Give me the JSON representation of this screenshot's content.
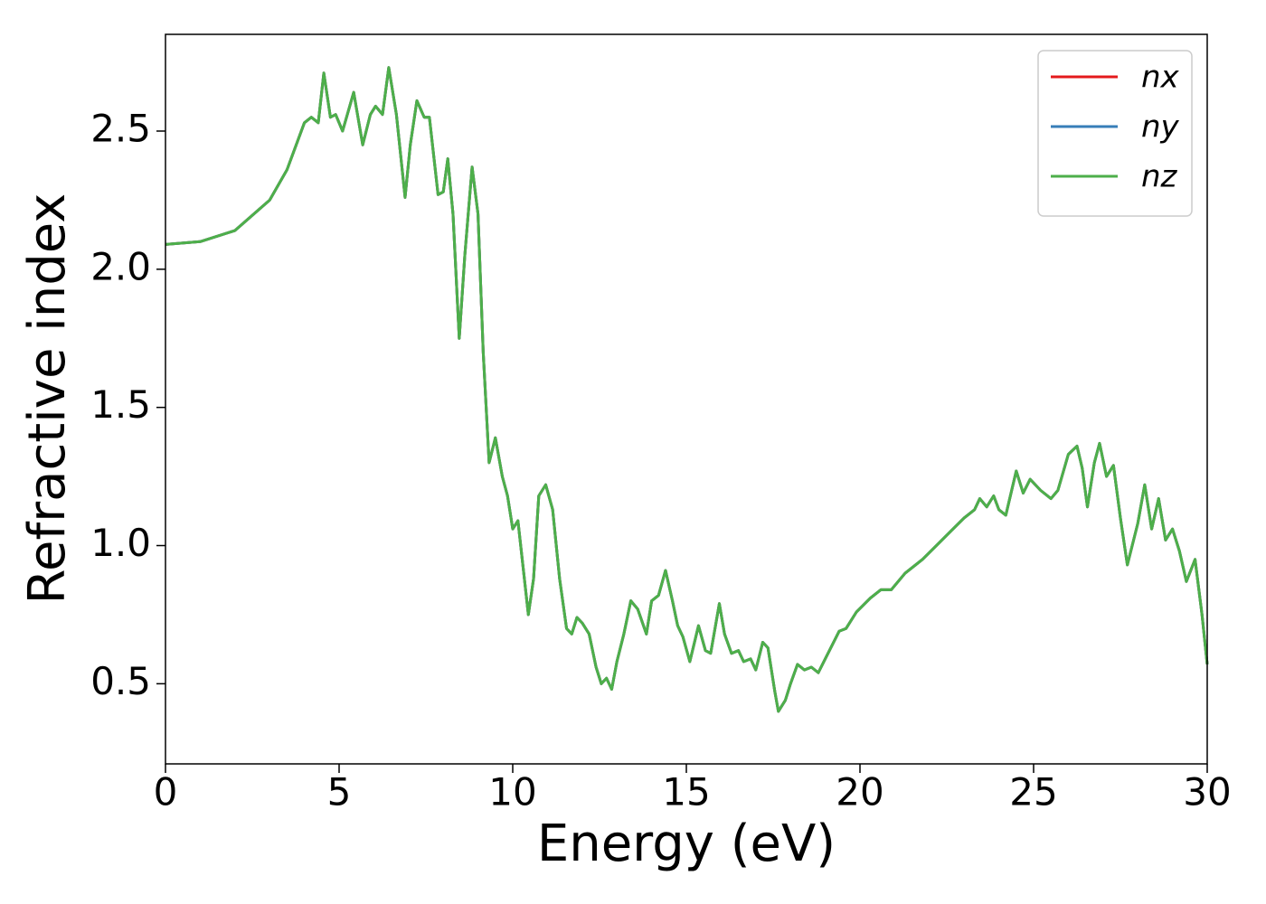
{
  "chart_data": {
    "type": "line",
    "xlabel": "Energy (eV)",
    "ylabel": "Refractive index",
    "xlim": [
      0,
      30
    ],
    "ylim": [
      0.21,
      2.85
    ],
    "xticks": [
      0,
      5,
      10,
      15,
      20,
      25,
      30
    ],
    "yticks": [
      {
        "value": 0.5,
        "label": "0.5"
      },
      {
        "value": 1.0,
        "label": "1.0"
      },
      {
        "value": 1.5,
        "label": "1.5"
      },
      {
        "value": 2.0,
        "label": "2.0"
      },
      {
        "value": 2.5,
        "label": "2.5"
      }
    ],
    "legend": "upper right",
    "x": [
      0,
      1,
      2,
      3,
      3.5,
      4,
      4.2,
      4.4,
      4.56,
      4.75,
      4.9,
      5.1,
      5.42,
      5.68,
      5.9,
      6.05,
      6.25,
      6.43,
      6.65,
      6.9,
      7.05,
      7.24,
      7.45,
      7.6,
      7.85,
      8.0,
      8.13,
      8.28,
      8.46,
      8.62,
      8.83,
      9.0,
      9.15,
      9.32,
      9.5,
      9.7,
      9.85,
      10.0,
      10.15,
      10.3,
      10.45,
      10.6,
      10.75,
      10.95,
      11.15,
      11.35,
      11.55,
      11.7,
      11.85,
      12.0,
      12.2,
      12.4,
      12.55,
      12.7,
      12.85,
      13.0,
      13.2,
      13.4,
      13.6,
      13.85,
      14.0,
      14.2,
      14.4,
      14.6,
      14.75,
      14.9,
      15.1,
      15.35,
      15.55,
      15.7,
      15.95,
      16.1,
      16.3,
      16.5,
      16.65,
      16.85,
      17.0,
      17.2,
      17.35,
      17.55,
      17.65,
      17.85,
      18.0,
      18.2,
      18.4,
      18.6,
      18.8,
      19.0,
      19.2,
      19.4,
      19.6,
      19.9,
      20.3,
      20.6,
      20.9,
      21.3,
      21.8,
      22.2,
      22.6,
      23.0,
      23.3,
      23.45,
      23.65,
      23.85,
      24.0,
      24.2,
      24.5,
      24.7,
      24.9,
      25.2,
      25.5,
      25.7,
      26.0,
      26.25,
      26.4,
      26.55,
      26.75,
      26.9,
      27.1,
      27.3,
      27.5,
      27.7,
      28.0,
      28.2,
      28.4,
      28.6,
      28.8,
      29.0,
      29.2,
      29.4,
      29.65,
      29.85,
      30.0
    ],
    "series": [
      {
        "name": "nx",
        "color": "#e41a1c",
        "values": [
          2.09,
          2.1,
          2.14,
          2.25,
          2.36,
          2.53,
          2.55,
          2.53,
          2.71,
          2.55,
          2.56,
          2.5,
          2.64,
          2.45,
          2.56,
          2.59,
          2.56,
          2.73,
          2.56,
          2.26,
          2.45,
          2.61,
          2.55,
          2.55,
          2.27,
          2.28,
          2.4,
          2.2,
          1.75,
          2.05,
          2.37,
          2.2,
          1.7,
          1.3,
          1.39,
          1.25,
          1.18,
          1.06,
          1.09,
          0.92,
          0.75,
          0.88,
          1.18,
          1.22,
          1.13,
          0.88,
          0.7,
          0.68,
          0.74,
          0.72,
          0.68,
          0.56,
          0.5,
          0.52,
          0.48,
          0.58,
          0.68,
          0.8,
          0.77,
          0.68,
          0.8,
          0.82,
          0.91,
          0.8,
          0.71,
          0.67,
          0.58,
          0.71,
          0.62,
          0.61,
          0.79,
          0.68,
          0.61,
          0.62,
          0.58,
          0.59,
          0.55,
          0.65,
          0.63,
          0.47,
          0.4,
          0.44,
          0.5,
          0.57,
          0.55,
          0.56,
          0.54,
          0.59,
          0.64,
          0.69,
          0.7,
          0.76,
          0.81,
          0.84,
          0.84,
          0.9,
          0.95,
          1.0,
          1.05,
          1.1,
          1.13,
          1.17,
          1.14,
          1.18,
          1.13,
          1.11,
          1.27,
          1.19,
          1.24,
          1.2,
          1.17,
          1.2,
          1.33,
          1.36,
          1.28,
          1.14,
          1.3,
          1.37,
          1.25,
          1.29,
          1.1,
          0.93,
          1.08,
          1.22,
          1.06,
          1.17,
          1.02,
          1.06,
          0.98,
          0.87,
          0.95,
          0.75,
          0.57
        ]
      },
      {
        "name": "ny",
        "color": "#377eb8",
        "values": [
          2.09,
          2.1,
          2.14,
          2.25,
          2.36,
          2.53,
          2.55,
          2.53,
          2.71,
          2.55,
          2.56,
          2.5,
          2.64,
          2.45,
          2.56,
          2.59,
          2.56,
          2.73,
          2.56,
          2.26,
          2.45,
          2.61,
          2.55,
          2.55,
          2.27,
          2.28,
          2.4,
          2.2,
          1.75,
          2.05,
          2.37,
          2.2,
          1.7,
          1.3,
          1.39,
          1.25,
          1.18,
          1.06,
          1.09,
          0.92,
          0.75,
          0.88,
          1.18,
          1.22,
          1.13,
          0.88,
          0.7,
          0.68,
          0.74,
          0.72,
          0.68,
          0.56,
          0.5,
          0.52,
          0.48,
          0.58,
          0.68,
          0.8,
          0.77,
          0.68,
          0.8,
          0.82,
          0.91,
          0.8,
          0.71,
          0.67,
          0.58,
          0.71,
          0.62,
          0.61,
          0.79,
          0.68,
          0.61,
          0.62,
          0.58,
          0.59,
          0.55,
          0.65,
          0.63,
          0.47,
          0.4,
          0.44,
          0.5,
          0.57,
          0.55,
          0.56,
          0.54,
          0.59,
          0.64,
          0.69,
          0.7,
          0.76,
          0.81,
          0.84,
          0.84,
          0.9,
          0.95,
          1.0,
          1.05,
          1.1,
          1.13,
          1.17,
          1.14,
          1.18,
          1.13,
          1.11,
          1.27,
          1.19,
          1.24,
          1.2,
          1.17,
          1.2,
          1.33,
          1.36,
          1.28,
          1.14,
          1.3,
          1.37,
          1.25,
          1.29,
          1.1,
          0.93,
          1.08,
          1.22,
          1.06,
          1.17,
          1.02,
          1.06,
          0.98,
          0.87,
          0.95,
          0.75,
          0.57
        ]
      },
      {
        "name": "nz",
        "color": "#4daf4a",
        "values": [
          2.09,
          2.1,
          2.14,
          2.25,
          2.36,
          2.53,
          2.55,
          2.53,
          2.71,
          2.55,
          2.56,
          2.5,
          2.64,
          2.45,
          2.56,
          2.59,
          2.56,
          2.73,
          2.56,
          2.26,
          2.45,
          2.61,
          2.55,
          2.55,
          2.27,
          2.28,
          2.4,
          2.2,
          1.75,
          2.05,
          2.37,
          2.2,
          1.7,
          1.3,
          1.39,
          1.25,
          1.18,
          1.06,
          1.09,
          0.92,
          0.75,
          0.88,
          1.18,
          1.22,
          1.13,
          0.88,
          0.7,
          0.68,
          0.74,
          0.72,
          0.68,
          0.56,
          0.5,
          0.52,
          0.48,
          0.58,
          0.68,
          0.8,
          0.77,
          0.68,
          0.8,
          0.82,
          0.91,
          0.8,
          0.71,
          0.67,
          0.58,
          0.71,
          0.62,
          0.61,
          0.79,
          0.68,
          0.61,
          0.62,
          0.58,
          0.59,
          0.55,
          0.65,
          0.63,
          0.47,
          0.4,
          0.44,
          0.5,
          0.57,
          0.55,
          0.56,
          0.54,
          0.59,
          0.64,
          0.69,
          0.7,
          0.76,
          0.81,
          0.84,
          0.84,
          0.9,
          0.95,
          1.0,
          1.05,
          1.1,
          1.13,
          1.17,
          1.14,
          1.18,
          1.13,
          1.11,
          1.27,
          1.19,
          1.24,
          1.2,
          1.17,
          1.2,
          1.33,
          1.36,
          1.28,
          1.14,
          1.3,
          1.37,
          1.25,
          1.29,
          1.1,
          0.93,
          1.08,
          1.22,
          1.06,
          1.17,
          1.02,
          1.06,
          0.98,
          0.87,
          0.95,
          0.75,
          0.57
        ]
      }
    ]
  }
}
